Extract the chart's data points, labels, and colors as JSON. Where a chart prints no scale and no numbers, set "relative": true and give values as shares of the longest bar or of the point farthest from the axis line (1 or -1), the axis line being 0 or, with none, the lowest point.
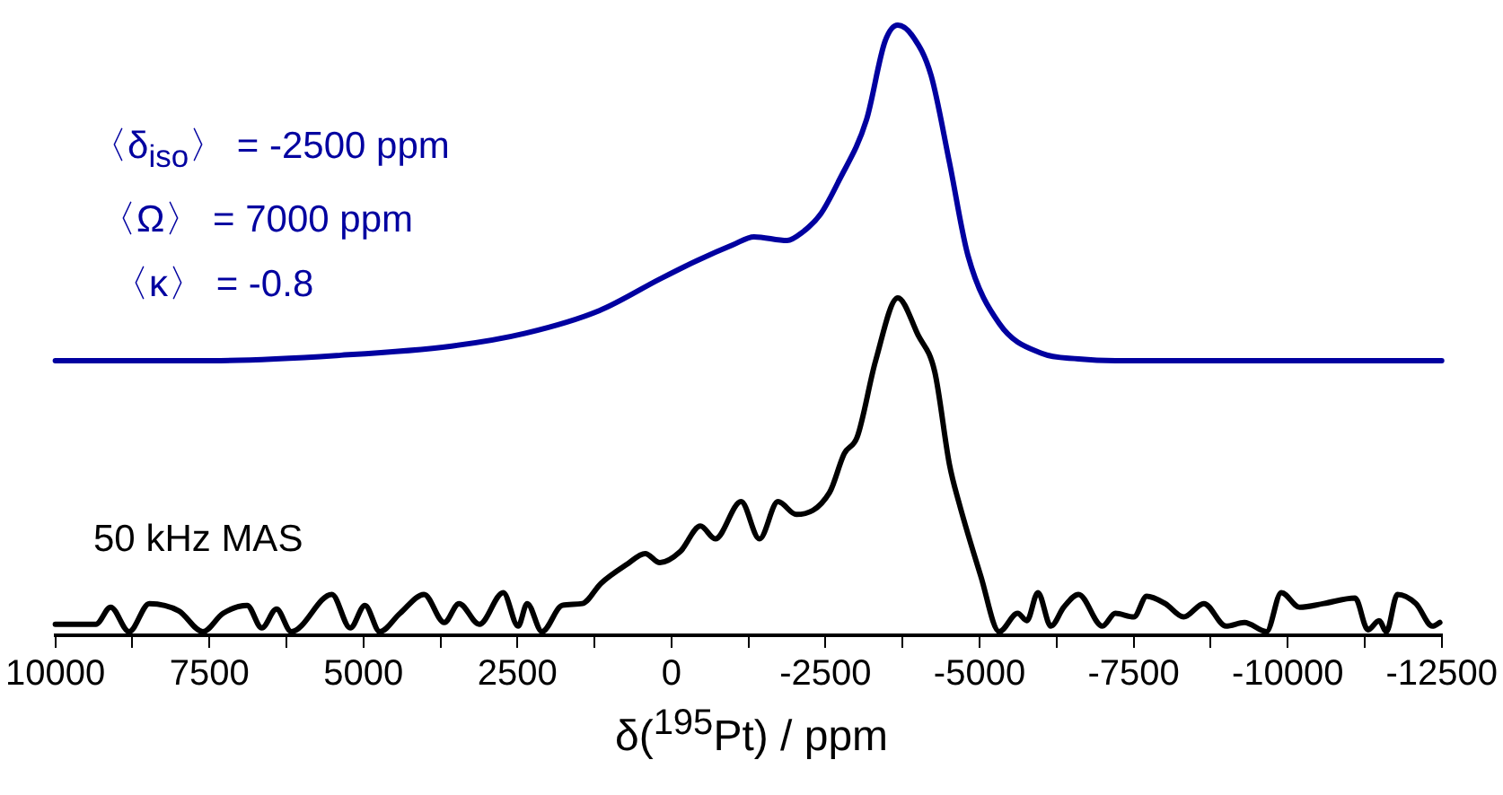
{
  "chart_data": {
    "type": "line",
    "relative": true,
    "xlabel": "δ($^{195}$Pt) / ppm",
    "xlim": [
      10000,
      -12500
    ],
    "xticks": [
      10000,
      {
        "value": 8750,
        "label": null
      },
      7500,
      {
        "value": 6250,
        "label": null
      },
      5000,
      {
        "value": 3750,
        "label": null
      },
      2500,
      {
        "value": 1250,
        "label": null
      },
      0,
      {
        "value": -1250,
        "label": null
      },
      -2500,
      {
        "value": -3750,
        "label": null
      },
      -5000,
      {
        "value": -6250,
        "label": null
      },
      -7500,
      {
        "value": -8750,
        "label": null
      },
      -10000,
      {
        "value": -11250,
        "label": null
      },
      -12500
    ],
    "grid": false,
    "legend": false,
    "marker": "none",
    "line_style": "solid",
    "annotations": [
      "〈δ$_{iso}$〉 = -2500 ppm",
      "〈Ω〉 = 7000 ppm",
      "〈κ〉 = -0.8",
      "50 kHz MAS"
    ],
    "series": [
      {
        "color": "#0000a0",
        "x": [
          10000,
          7457,
          5362,
          3567,
          2370,
          1173,
          186,
          -413,
          -1000,
          -1340,
          -1878,
          -2119,
          -2418,
          -2717,
          -3165,
          -3464,
          -3673,
          -3913,
          -4212,
          -4511,
          -4810,
          -5319,
          -6007,
          -6606,
          -7204,
          -12500
        ],
        "values": [
          0.45,
          0.45,
          0.459,
          0.474,
          0.495,
          0.532,
          0.584,
          0.614,
          0.64,
          0.653,
          0.647,
          0.66,
          0.69,
          0.745,
          0.845,
          0.973,
          1,
          0.982,
          0.918,
          0.775,
          0.623,
          0.511,
          0.462,
          0.453,
          0.45,
          0.45
        ]
      },
      {
        "color": "#000000",
        "x": [
          10000,
          9342,
          9102,
          8803,
          8474,
          7995,
          7606,
          7277,
          6888,
          6649,
          6410,
          6170,
          5512,
          5213,
          4974,
          4734,
          4405,
          4016,
          3687,
          3448,
          3119,
          2730,
          2490,
          2341,
          2102,
          1773,
          1444,
          1145,
          726,
          427,
          188,
          -141,
          -470,
          -710,
          -1129,
          -1428,
          -1728,
          -2027,
          -2565,
          -2805,
          -3014,
          -3313,
          -3673,
          -4002,
          -4272,
          -4511,
          -4661,
          -5020,
          -5319,
          -5618,
          -5768,
          -5947,
          -6157,
          -6366,
          -6606,
          -6994,
          -7204,
          -7503,
          -7712,
          -8012,
          -8311,
          -8640,
          -8999,
          -9298,
          -9657,
          -9897,
          -10196,
          -10585,
          -11094,
          -11303,
          -11483,
          -11602,
          -11782,
          -12081,
          -12350,
          -12470
        ],
        "values": [
          0.018,
          0.018,
          0.046,
          0.006,
          0.052,
          0.04,
          0.006,
          0.036,
          0.049,
          0.012,
          0.043,
          0.006,
          0.067,
          0.012,
          0.049,
          0.006,
          0.036,
          0.067,
          0.021,
          0.052,
          0.018,
          0.07,
          0.015,
          0.052,
          0.006,
          0.049,
          0.052,
          0.085,
          0.116,
          0.134,
          0.119,
          0.137,
          0.179,
          0.158,
          0.219,
          0.158,
          0.219,
          0.198,
          0.234,
          0.298,
          0.325,
          0.45,
          0.553,
          0.492,
          0.432,
          0.28,
          0.219,
          0.097,
          0.006,
          0.036,
          0.024,
          0.07,
          0.015,
          0.046,
          0.067,
          0.015,
          0.036,
          0.03,
          0.064,
          0.052,
          0.03,
          0.052,
          0.015,
          0.021,
          0.006,
          0.07,
          0.046,
          0.052,
          0.061,
          0.009,
          0.024,
          0.006,
          0.067,
          0.052,
          0.015,
          0.021
        ]
      }
    ]
  }
}
